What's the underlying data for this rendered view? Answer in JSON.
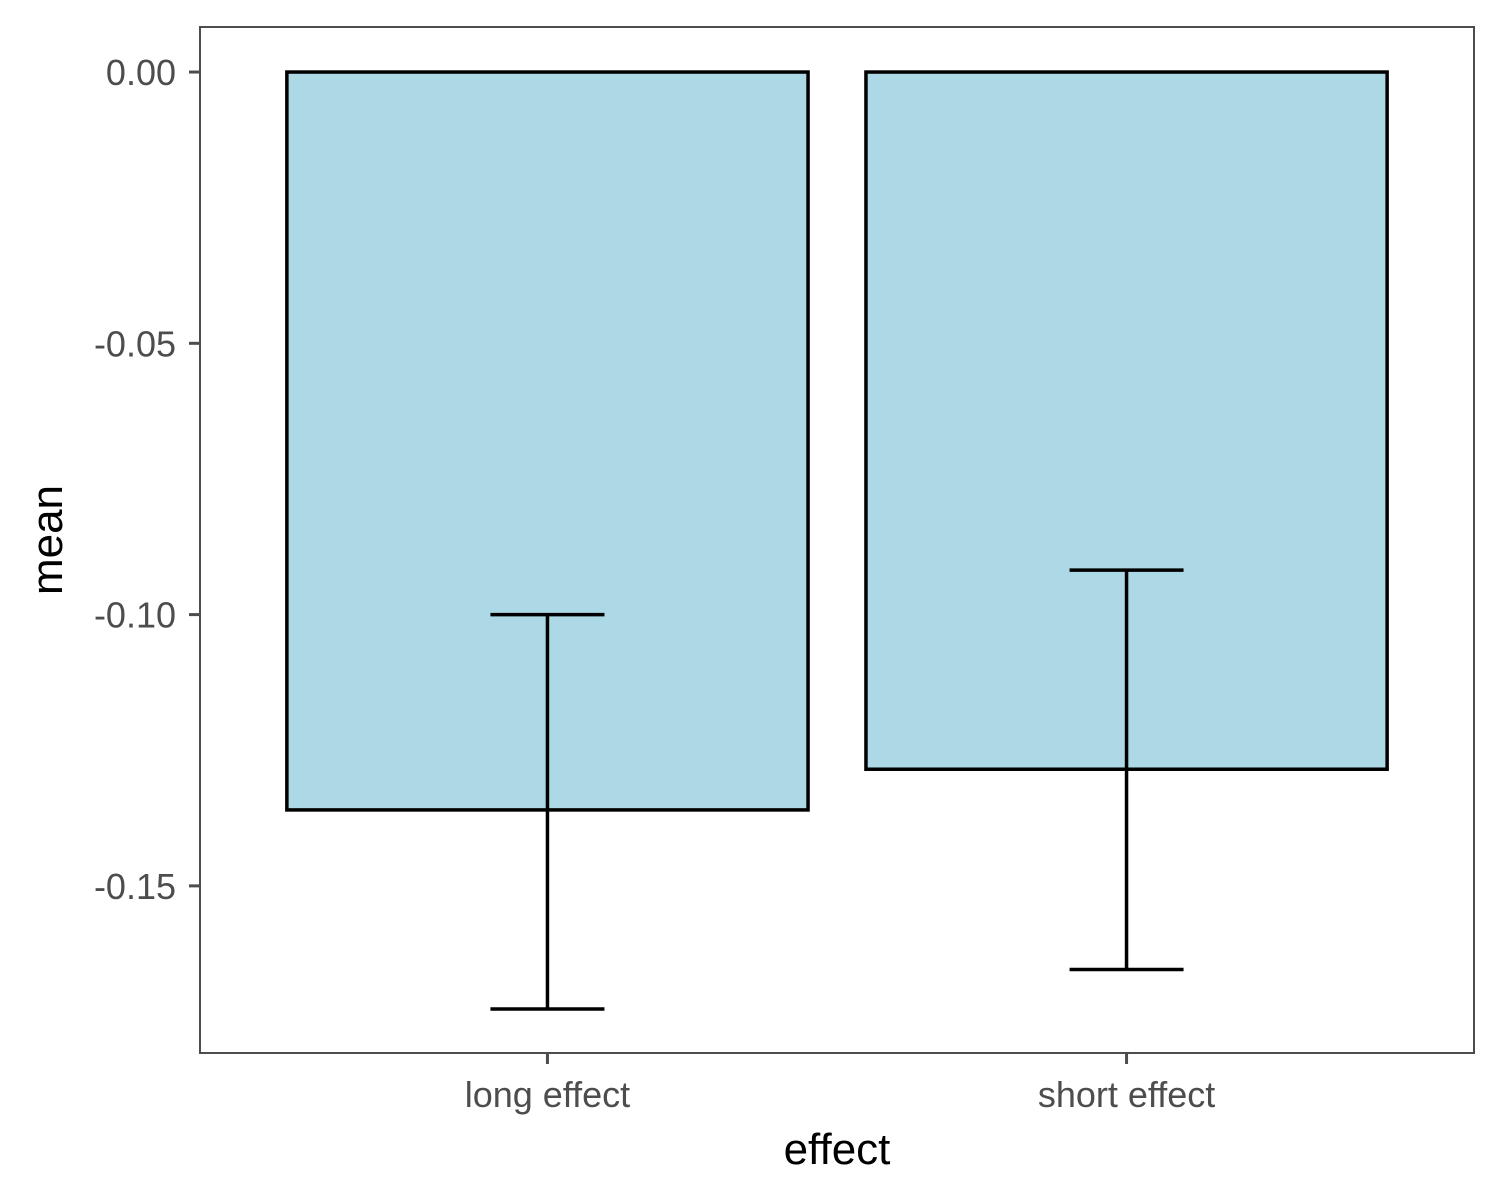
{
  "chart_data": {
    "type": "bar",
    "title": "",
    "xlabel": "effect",
    "ylabel": "mean",
    "categories": [
      "long effect",
      "short effect"
    ],
    "values": [
      -0.136,
      -0.1285
    ],
    "error_low": [
      -0.1727,
      -0.1654
    ],
    "error_high": [
      -0.1,
      -0.0918
    ],
    "yticks": [
      0.0,
      -0.05,
      -0.1,
      -0.15
    ],
    "ytick_labels": [
      "0.00",
      "-0.05",
      "-0.10",
      "-0.15"
    ],
    "ylim": [
      -0.1808,
      0.0083
    ],
    "grid": false,
    "legend": "none",
    "colors": {
      "bar_fill": "#add8e6",
      "bar_stroke": "#000000",
      "errorbar": "#000000",
      "panel_border": "#4d4d4d",
      "tick_text": "#4d4d4d",
      "title_text": "#000000"
    }
  }
}
